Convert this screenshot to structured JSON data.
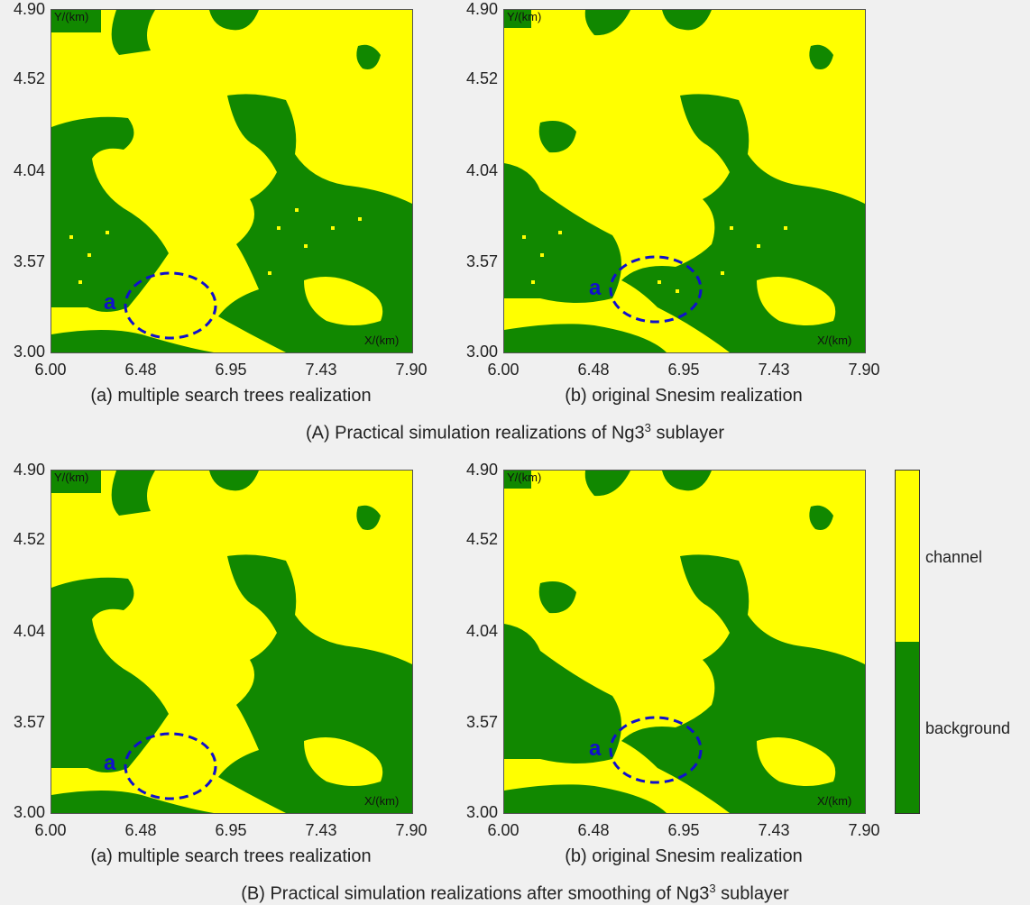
{
  "colors": {
    "channel": "#ffff00",
    "background": "#118800",
    "annotation": "#1010cc"
  },
  "chart_data": [
    {
      "type": "heatmap",
      "panel": "A-a",
      "title": "(a) multiple search trees realization",
      "xlabel": "X/(km)",
      "ylabel": "Y/(km)",
      "xticks": [
        "6.00",
        "6.48",
        "6.95",
        "7.43",
        "7.90"
      ],
      "yticks": [
        "3.00",
        "3.57",
        "4.04",
        "4.52",
        "4.90"
      ],
      "xlim": [
        6.0,
        7.9
      ],
      "ylim": [
        3.0,
        4.9
      ],
      "annotation": "a",
      "legend": [
        "channel",
        "background"
      ]
    },
    {
      "type": "heatmap",
      "panel": "A-b",
      "title": "(b) original Snesim realization",
      "xlabel": "X/(km)",
      "ylabel": "Y/(km)",
      "xticks": [
        "6.00",
        "6.48",
        "6.95",
        "7.43",
        "7.90"
      ],
      "yticks": [
        "3.00",
        "3.57",
        "4.04",
        "4.52",
        "4.90"
      ],
      "xlim": [
        6.0,
        7.9
      ],
      "ylim": [
        3.0,
        4.9
      ],
      "annotation": "a",
      "legend": [
        "channel",
        "background"
      ]
    },
    {
      "type": "heatmap",
      "panel": "B-a",
      "title": "(a) multiple search trees realization",
      "xlabel": "X/(km)",
      "ylabel": "Y/(km)",
      "xticks": [
        "6.00",
        "6.48",
        "6.95",
        "7.43",
        "7.90"
      ],
      "yticks": [
        "3.00",
        "3.57",
        "4.04",
        "4.52",
        "4.90"
      ],
      "xlim": [
        6.0,
        7.9
      ],
      "ylim": [
        3.0,
        4.9
      ],
      "annotation": "a",
      "legend": [
        "channel",
        "background"
      ]
    },
    {
      "type": "heatmap",
      "panel": "B-b",
      "title": "(b) original Snesim realization",
      "xlabel": "X/(km)",
      "ylabel": "Y/(km)",
      "xticks": [
        "6.00",
        "6.48",
        "6.95",
        "7.43",
        "7.90"
      ],
      "yticks": [
        "3.00",
        "3.57",
        "4.04",
        "4.52",
        "4.90"
      ],
      "xlim": [
        6.0,
        7.9
      ],
      "ylim": [
        3.0,
        4.9
      ],
      "annotation": "a",
      "legend": [
        "channel",
        "background"
      ]
    }
  ],
  "group_titles": {
    "A": {
      "text": "(A) Practical simulation realizations of Ng3",
      "sup": "3",
      "tail": " sublayer"
    },
    "B": {
      "text": "(B) Practical simulation realizations after smoothing of Ng3",
      "sup": "3",
      "tail": " sublayer"
    }
  },
  "colorbar": {
    "labels": [
      "channel",
      "background"
    ]
  }
}
